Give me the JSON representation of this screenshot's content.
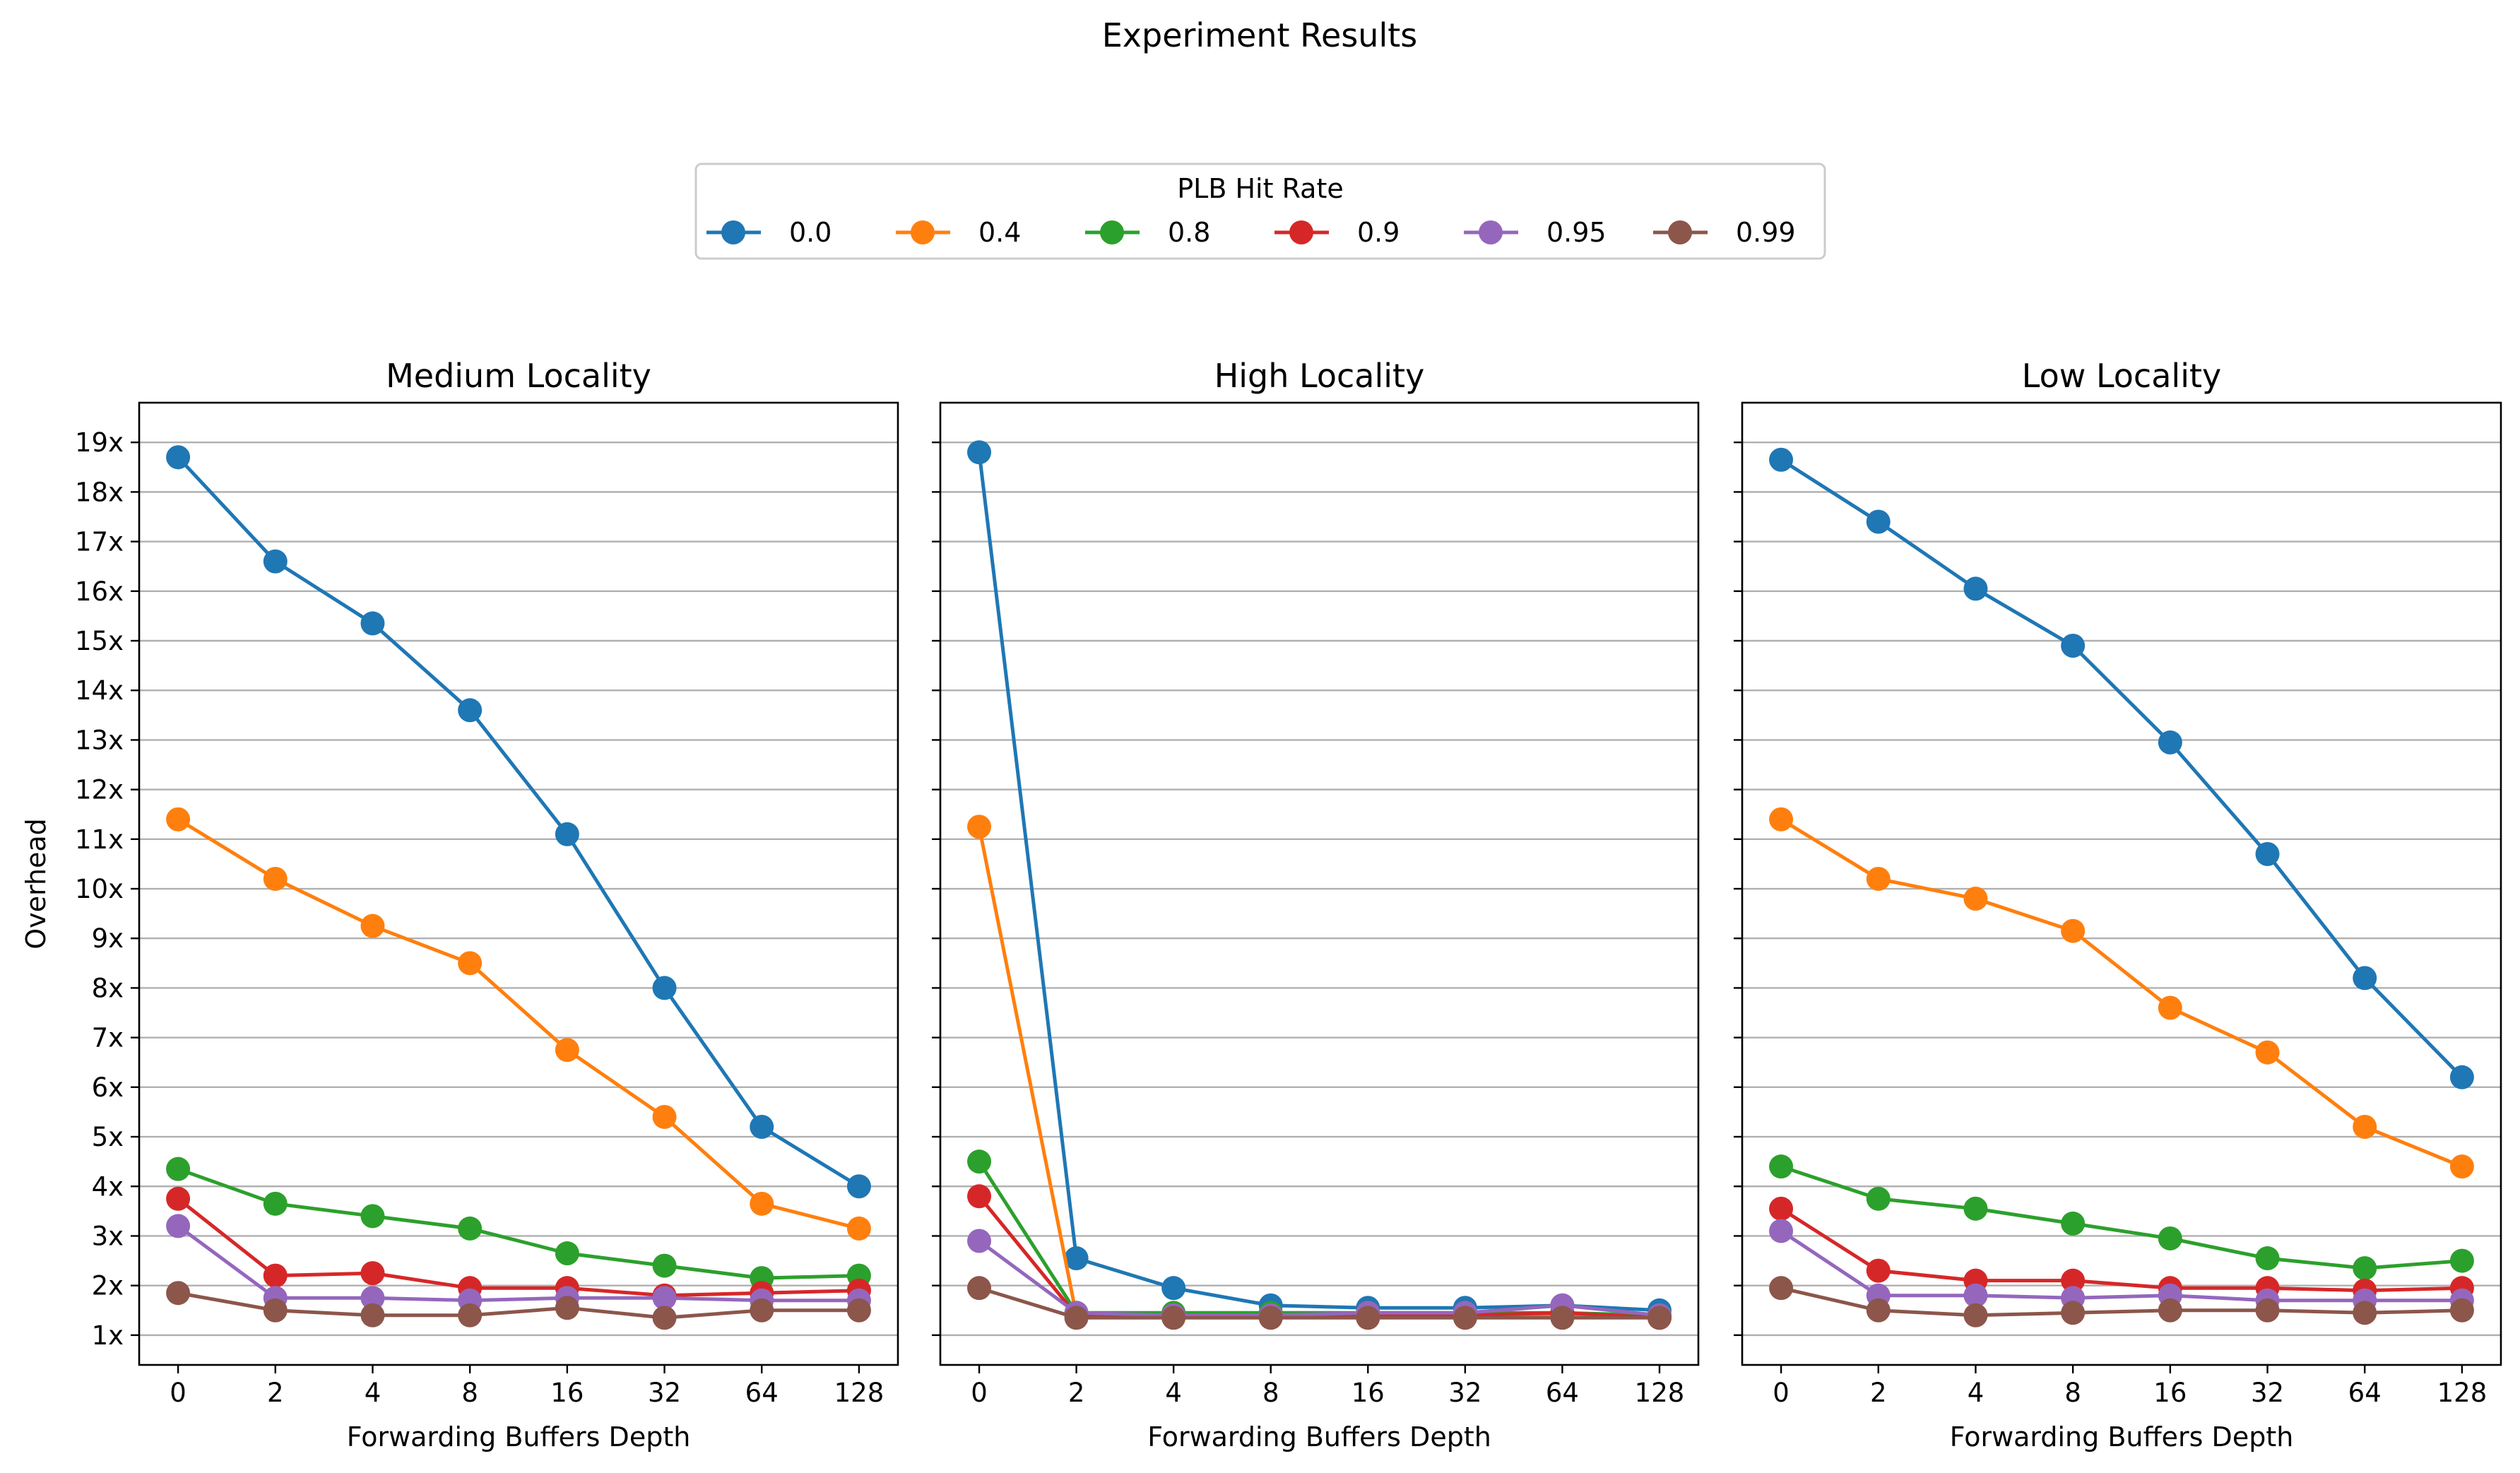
{
  "figure": {
    "title": "Experiment Results"
  },
  "legend": {
    "title": "PLB Hit Rate",
    "items": [
      {
        "label": "0.0",
        "color": "#1f77b4"
      },
      {
        "label": "0.4",
        "color": "#ff7f0e"
      },
      {
        "label": "0.8",
        "color": "#2ca02c"
      },
      {
        "label": "0.9",
        "color": "#d62728"
      },
      {
        "label": "0.95",
        "color": "#9467bd"
      },
      {
        "label": "0.99",
        "color": "#8c564b"
      }
    ]
  },
  "chart_data": [
    {
      "type": "line",
      "title": "Medium Locality",
      "xlabel": "Forwarding Buffers Depth",
      "ylabel": "Overhead",
      "categories": [
        "0",
        "2",
        "4",
        "8",
        "16",
        "32",
        "64",
        "128"
      ],
      "ylim": [
        0.4,
        19.8
      ],
      "yticks": [
        "1x",
        "2x",
        "3x",
        "4x",
        "5x",
        "6x",
        "7x",
        "8x",
        "9x",
        "10x",
        "11x",
        "12x",
        "13x",
        "14x",
        "15x",
        "16x",
        "17x",
        "18x",
        "19x"
      ],
      "grid": "y",
      "series": [
        {
          "name": "0.0",
          "color": "#1f77b4",
          "values": [
            18.7,
            16.6,
            15.35,
            13.6,
            11.1,
            8.0,
            5.2,
            4.0
          ]
        },
        {
          "name": "0.4",
          "color": "#ff7f0e",
          "values": [
            11.4,
            10.2,
            9.25,
            8.5,
            6.75,
            5.4,
            3.65,
            3.15
          ]
        },
        {
          "name": "0.8",
          "color": "#2ca02c",
          "values": [
            4.35,
            3.65,
            3.4,
            3.15,
            2.65,
            2.4,
            2.15,
            2.2
          ]
        },
        {
          "name": "0.9",
          "color": "#d62728",
          "values": [
            3.75,
            2.2,
            2.25,
            1.95,
            1.95,
            1.8,
            1.85,
            1.9
          ]
        },
        {
          "name": "0.95",
          "color": "#9467bd",
          "values": [
            3.2,
            1.75,
            1.75,
            1.7,
            1.75,
            1.75,
            1.7,
            1.7
          ]
        },
        {
          "name": "0.99",
          "color": "#8c564b",
          "values": [
            1.85,
            1.5,
            1.4,
            1.4,
            1.55,
            1.35,
            1.5,
            1.5
          ]
        }
      ]
    },
    {
      "type": "line",
      "title": "High Locality",
      "xlabel": "Forwarding Buffers Depth",
      "ylabel": "",
      "categories": [
        "0",
        "2",
        "4",
        "8",
        "16",
        "32",
        "64",
        "128"
      ],
      "ylim": [
        0.4,
        19.8
      ],
      "yticks": [],
      "grid": "y",
      "series": [
        {
          "name": "0.0",
          "color": "#1f77b4",
          "values": [
            18.8,
            2.55,
            1.95,
            1.6,
            1.55,
            1.55,
            1.6,
            1.5
          ]
        },
        {
          "name": "0.4",
          "color": "#ff7f0e",
          "values": [
            11.25,
            1.4,
            1.4,
            1.4,
            1.35,
            1.4,
            1.4,
            1.35
          ]
        },
        {
          "name": "0.8",
          "color": "#2ca02c",
          "values": [
            4.5,
            1.45,
            1.45,
            1.45,
            1.45,
            1.45,
            1.45,
            1.4
          ]
        },
        {
          "name": "0.9",
          "color": "#d62728",
          "values": [
            3.8,
            1.4,
            1.4,
            1.4,
            1.4,
            1.4,
            1.45,
            1.35
          ]
        },
        {
          "name": "0.95",
          "color": "#9467bd",
          "values": [
            2.9,
            1.45,
            1.4,
            1.4,
            1.45,
            1.45,
            1.6,
            1.4
          ]
        },
        {
          "name": "0.99",
          "color": "#8c564b",
          "values": [
            1.95,
            1.35,
            1.35,
            1.35,
            1.35,
            1.35,
            1.35,
            1.35
          ]
        }
      ]
    },
    {
      "type": "line",
      "title": "Low Locality",
      "xlabel": "Forwarding Buffers Depth",
      "ylabel": "",
      "categories": [
        "0",
        "2",
        "4",
        "8",
        "16",
        "32",
        "64",
        "128"
      ],
      "ylim": [
        0.4,
        19.8
      ],
      "yticks": [],
      "grid": "y",
      "series": [
        {
          "name": "0.0",
          "color": "#1f77b4",
          "values": [
            18.65,
            17.4,
            16.05,
            14.9,
            12.95,
            10.7,
            8.2,
            6.2
          ]
        },
        {
          "name": "0.4",
          "color": "#ff7f0e",
          "values": [
            11.4,
            10.2,
            9.8,
            9.15,
            7.6,
            6.7,
            5.2,
            4.4
          ]
        },
        {
          "name": "0.8",
          "color": "#2ca02c",
          "values": [
            4.4,
            3.75,
            3.55,
            3.25,
            2.95,
            2.55,
            2.35,
            2.5
          ]
        },
        {
          "name": "0.9",
          "color": "#d62728",
          "values": [
            3.55,
            2.3,
            2.1,
            2.1,
            1.95,
            1.95,
            1.9,
            1.95
          ]
        },
        {
          "name": "0.95",
          "color": "#9467bd",
          "values": [
            3.1,
            1.8,
            1.8,
            1.75,
            1.8,
            1.7,
            1.7,
            1.7
          ]
        },
        {
          "name": "0.99",
          "color": "#8c564b",
          "values": [
            1.95,
            1.5,
            1.4,
            1.45,
            1.5,
            1.5,
            1.45,
            1.5
          ]
        }
      ]
    }
  ]
}
